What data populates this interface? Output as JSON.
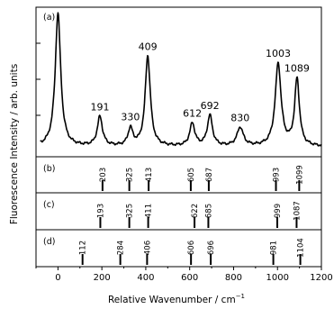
{
  "chart_data": {
    "type": "line",
    "xlabel": "Relative Wavenumber / cm",
    "xlabel_sup": "−1",
    "ylabel": "Fluorescence Intensity / arb. units",
    "xlim": [
      -100,
      1200
    ],
    "x_ticks": [
      0,
      200,
      400,
      600,
      800,
      1000,
      1200
    ],
    "x_minor_step": 100,
    "ylim": [
      0,
      1.07
    ],
    "panels": [
      {
        "tag": "(a)",
        "kind": "spectrum",
        "peaks": [
          {
            "position": 0,
            "height": 1.0,
            "width": 15,
            "label": ""
          },
          {
            "position": 191,
            "height": 0.22,
            "width": 14,
            "label": "191"
          },
          {
            "position": 330,
            "height": 0.13,
            "width": 13,
            "label": "330"
          },
          {
            "position": 409,
            "height": 0.68,
            "width": 14,
            "label": "409"
          },
          {
            "position": 612,
            "height": 0.17,
            "width": 14,
            "label": "612"
          },
          {
            "position": 692,
            "height": 0.23,
            "width": 14,
            "label": "692"
          },
          {
            "position": 830,
            "height": 0.14,
            "width": 17,
            "label": "830"
          },
          {
            "position": 1003,
            "height": 0.62,
            "width": 16,
            "label": "1003"
          },
          {
            "position": 1089,
            "height": 0.5,
            "width": 13,
            "label": "1089"
          }
        ]
      },
      {
        "tag": "(b)",
        "kind": "sticks",
        "lines": [
          {
            "position": 203,
            "label": "203"
          },
          {
            "position": 325,
            "label": "325"
          },
          {
            "position": 413,
            "label": "413"
          },
          {
            "position": 605,
            "label": "605"
          },
          {
            "position": 687,
            "label": "687"
          },
          {
            "position": 993,
            "label": "993"
          },
          {
            "position": 1099,
            "label": "1099"
          }
        ]
      },
      {
        "tag": "(c)",
        "kind": "sticks",
        "lines": [
          {
            "position": 193,
            "label": "193"
          },
          {
            "position": 325,
            "label": "325"
          },
          {
            "position": 411,
            "label": "411"
          },
          {
            "position": 622,
            "label": "622"
          },
          {
            "position": 685,
            "label": "685"
          },
          {
            "position": 999,
            "label": "999"
          },
          {
            "position": 1087,
            "label": "1087"
          }
        ]
      },
      {
        "tag": "(d)",
        "kind": "sticks",
        "lines": [
          {
            "position": 112,
            "label": "112"
          },
          {
            "position": 284,
            "label": "284"
          },
          {
            "position": 406,
            "label": "406"
          },
          {
            "position": 606,
            "label": "606"
          },
          {
            "position": 696,
            "label": "696"
          },
          {
            "position": 981,
            "label": "981"
          },
          {
            "position": 1104,
            "label": "1104"
          }
        ]
      }
    ]
  }
}
